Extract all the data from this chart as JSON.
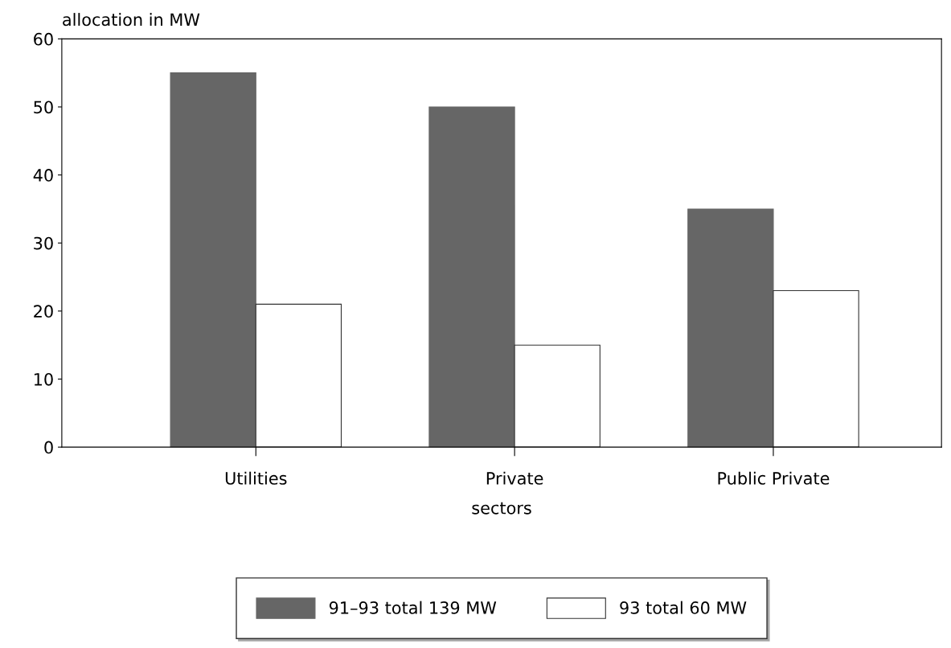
{
  "chart_data": {
    "type": "bar",
    "ylabel": "allocation in MW",
    "xlabel": "sectors",
    "categories": [
      "Utilities",
      "Private",
      "Public Private"
    ],
    "series": [
      {
        "name": "91–93 total 139 MW",
        "color": "#666666",
        "values": [
          55,
          50,
          35
        ]
      },
      {
        "name": "93 total 60 MW",
        "color": "#ffffff",
        "values": [
          21,
          15,
          23
        ]
      }
    ],
    "ylim": [
      0,
      60
    ],
    "yticks": [
      0,
      10,
      20,
      30,
      40,
      50,
      60
    ],
    "grid": false,
    "legend": "bottom"
  }
}
